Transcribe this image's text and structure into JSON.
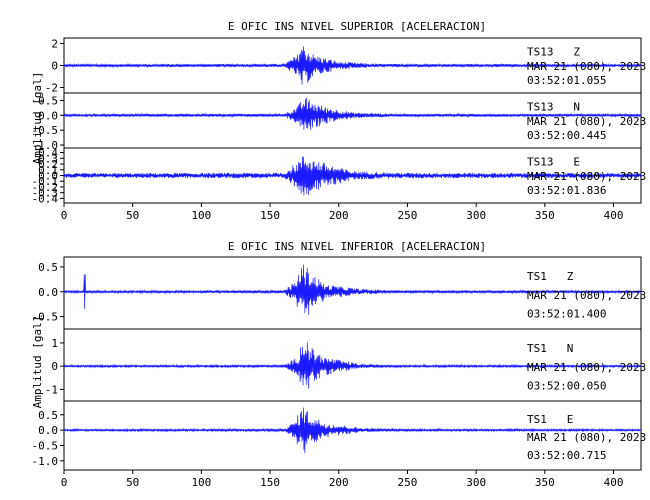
{
  "colors": {
    "trace": "#1a1aff",
    "axes": "#000000",
    "background": "#ffffff"
  },
  "chart_data": [
    {
      "type": "line",
      "title": "E OFIC INS NIVEL SUPERIOR [ACELERACION]",
      "ylabel": "Amplitud [gal]",
      "xlabel": "",
      "xlim": [
        0,
        420
      ],
      "xticks": [
        0,
        50,
        100,
        150,
        200,
        250,
        300,
        350,
        400
      ],
      "grid": false,
      "series": [
        {
          "name": "TS13   Z",
          "date": "MAR 21 (080), 2023",
          "time": "03:52:01.055",
          "ylim": [
            -2.5,
            2.5
          ],
          "yticks": [
            -2,
            0,
            2
          ],
          "yticklabels": [
            "-2",
            "0",
            "2"
          ],
          "noise": 0.12,
          "envelope": [
            [
              0,
              0.12
            ],
            [
              160,
              0.15
            ],
            [
              170,
              1.0
            ],
            [
              172,
              2.2
            ],
            [
              176,
              1.8
            ],
            [
              182,
              1.0
            ],
            [
              200,
              0.35
            ],
            [
              230,
              0.15
            ],
            [
              420,
              0.12
            ]
          ]
        },
        {
          "name": "TS13   N",
          "date": "MAR 21 (080), 2023",
          "time": "03:52:00.445",
          "ylim": [
            -1.1,
            0.75
          ],
          "yticks": [
            -1.0,
            -0.5,
            0.0,
            0.5
          ],
          "yticklabels": [
            "-1.0",
            "-0.5",
            "0.0",
            "0.5"
          ],
          "noise": 0.04,
          "envelope": [
            [
              0,
              0.04
            ],
            [
              160,
              0.05
            ],
            [
              170,
              0.3
            ],
            [
              175,
              0.65
            ],
            [
              180,
              0.5
            ],
            [
              190,
              0.3
            ],
            [
              210,
              0.1
            ],
            [
              240,
              0.05
            ],
            [
              420,
              0.04
            ]
          ]
        },
        {
          "name": "TS13   E",
          "date": "MAR 21 (080), 2023",
          "time": "03:52:01.836",
          "ylim": [
            -0.48,
            0.48
          ],
          "yticks": [
            -0.4,
            -0.3,
            -0.2,
            -0.1,
            0.0,
            0.1,
            0.2,
            0.3,
            0.4
          ],
          "yticklabels": [
            "-0.4",
            "-0.3",
            "-0.2",
            "-0.1",
            "0.0",
            "0.1",
            "0.2",
            "0.3",
            "0.4"
          ],
          "noise": 0.04,
          "envelope": [
            [
              0,
              0.04
            ],
            [
              160,
              0.05
            ],
            [
              168,
              0.2
            ],
            [
              175,
              0.38
            ],
            [
              182,
              0.3
            ],
            [
              192,
              0.2
            ],
            [
              210,
              0.08
            ],
            [
              240,
              0.05
            ],
            [
              420,
              0.04
            ]
          ]
        }
      ]
    },
    {
      "type": "line",
      "title": "E OFIC INS NIVEL INFERIOR [ACELERACION]",
      "ylabel": "Amplitud [gal]",
      "xlabel": "",
      "xlim": [
        0,
        420
      ],
      "xticks": [
        0,
        50,
        100,
        150,
        200,
        250,
        300,
        350,
        400
      ],
      "grid": false,
      "series": [
        {
          "name": "TS1   Z",
          "date": "MAR 21 (080), 2023",
          "time": "03:52:01.400",
          "ylim": [
            -0.75,
            0.7
          ],
          "yticks": [
            -0.5,
            0.0,
            0.5
          ],
          "yticklabels": [
            "-0.5",
            "0.0",
            "0.5"
          ],
          "noise": 0.02,
          "spike": {
            "x": 15,
            "amp": 0.35
          },
          "envelope": [
            [
              0,
              0.02
            ],
            [
              160,
              0.03
            ],
            [
              168,
              0.2
            ],
            [
              174,
              0.6
            ],
            [
              180,
              0.4
            ],
            [
              190,
              0.15
            ],
            [
              215,
              0.06
            ],
            [
              240,
              0.03
            ],
            [
              420,
              0.02
            ]
          ]
        },
        {
          "name": "TS1   N",
          "date": "MAR 21 (080), 2023",
          "time": "03:52:00.050",
          "ylim": [
            -1.5,
            1.6
          ],
          "yticks": [
            -1,
            0,
            1
          ],
          "yticklabels": [
            "-1",
            "0",
            "1"
          ],
          "noise": 0.04,
          "envelope": [
            [
              0,
              0.04
            ],
            [
              160,
              0.05
            ],
            [
              170,
              0.4
            ],
            [
              174,
              1.4
            ],
            [
              180,
              0.8
            ],
            [
              190,
              0.4
            ],
            [
              215,
              0.1
            ],
            [
              240,
              0.05
            ],
            [
              420,
              0.04
            ]
          ]
        },
        {
          "name": "TS1   E",
          "date": "MAR 21 (080), 2023",
          "time": "03:52:00.715",
          "ylim": [
            -1.3,
            0.95
          ],
          "yticks": [
            -1.0,
            -0.5,
            0.0,
            0.5
          ],
          "yticklabels": [
            "-1.0",
            "-0.5",
            "0.0",
            "0.5"
          ],
          "noise": 0.03,
          "envelope": [
            [
              0,
              0.03
            ],
            [
              160,
              0.04
            ],
            [
              168,
              0.3
            ],
            [
              174,
              0.85
            ],
            [
              180,
              0.5
            ],
            [
              190,
              0.25
            ],
            [
              215,
              0.08
            ],
            [
              240,
              0.04
            ],
            [
              420,
              0.03
            ]
          ]
        }
      ]
    }
  ]
}
